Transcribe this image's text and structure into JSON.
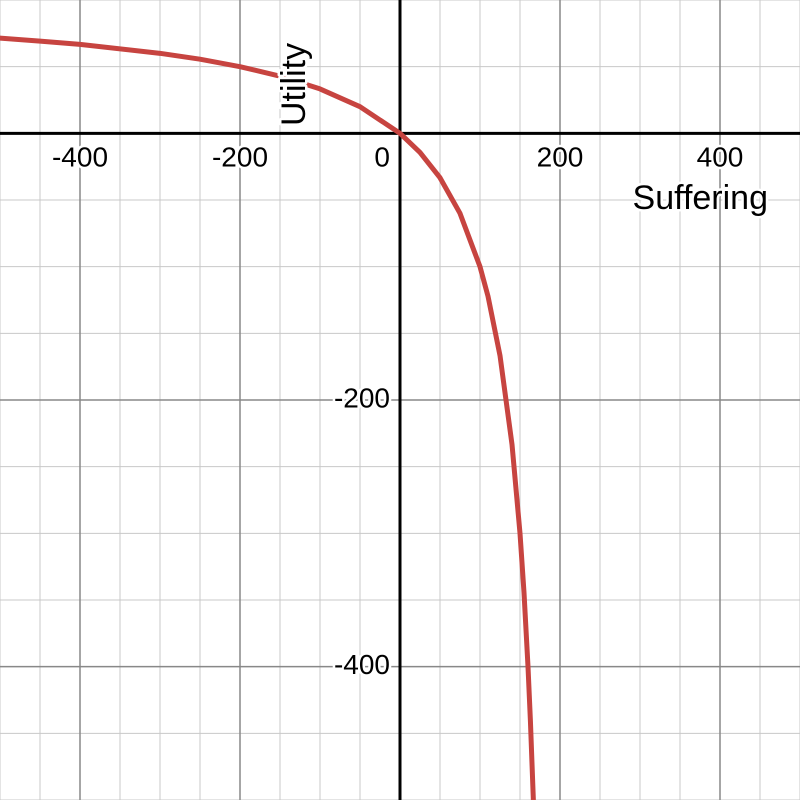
{
  "chart_data": {
    "type": "line",
    "x_label": "Suffering",
    "y_label": "Utility",
    "x": [
      -500,
      -450,
      -400,
      -300,
      -250,
      -200,
      -150,
      -100,
      -50,
      0,
      25,
      50,
      75,
      100,
      110,
      125,
      140,
      150,
      155,
      160,
      163,
      166.7
    ],
    "series": [
      {
        "color": "#c74440",
        "values": [
          71.4,
          69.2,
          66.7,
          60,
          55.6,
          50,
          42.9,
          33.3,
          20,
          0,
          -14.3,
          -33.3,
          -60,
          -100,
          -122.2,
          -166.7,
          -233.3,
          -300,
          -344.4,
          -400,
          -440.5,
          -500
        ]
      }
    ],
    "xlim": [
      -500,
      500
    ],
    "ylim": [
      -500,
      100
    ],
    "xticks": [
      -400,
      -200,
      0,
      200,
      400
    ],
    "yticks": [
      -400,
      -200
    ],
    "grid": true
  }
}
